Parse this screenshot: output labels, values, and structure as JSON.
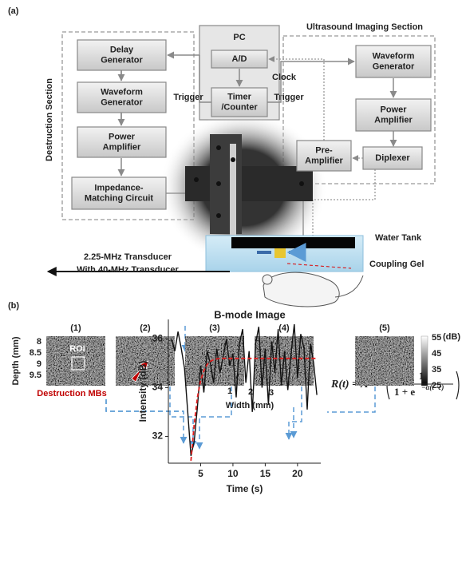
{
  "panel_a": {
    "label": "(a)",
    "destruction": {
      "title": "Destruction Section",
      "boxes": [
        [
          "Delay",
          "Generator"
        ],
        [
          "Waveform",
          "Generator"
        ],
        [
          "Power",
          "Amplifier"
        ],
        [
          "Impedance-",
          "Matching Circuit"
        ]
      ]
    },
    "pc": {
      "title": "PC",
      "ad": "A/D",
      "clock": "Clock",
      "timer": [
        "Timer",
        "/Counter"
      ]
    },
    "triggers": [
      "Trigger",
      "Trigger"
    ],
    "imaging": {
      "title": "Ultrasound Imaging Section",
      "boxes": [
        [
          "Waveform",
          "Generator"
        ],
        [
          "Power",
          "Amplifier"
        ],
        "Diplexer",
        [
          "Pre-",
          "Amplifier"
        ]
      ]
    },
    "water_tank": "Water Tank",
    "coupling_gel": "Coupling Gel",
    "transducer": [
      "2.25-MHz Transducer",
      "With 40-MHz Transducer"
    ]
  },
  "panel_b": {
    "label": "(b)",
    "title": "B-mode Image",
    "frames": [
      "(1)",
      "(2)",
      "(3)",
      "(4)",
      "(5)"
    ],
    "depth_label": "Depth (mm)",
    "depth_ticks": [
      "8",
      "8.5",
      "9",
      "9.5"
    ],
    "roi": "ROI",
    "destruction_label": "Destruction MBs",
    "width_label": "Width (mm)",
    "width_ticks": [
      "1",
      "2",
      "3"
    ],
    "colorbar": {
      "ticks": [
        "55",
        "45",
        "35",
        "25"
      ],
      "unit": "(dB)"
    },
    "equation": {
      "lhs": "R(t) = A",
      "numerator": "1",
      "denominator": "1 + e",
      "exponent": "−α(t−c)"
    }
  },
  "chart_data": {
    "type": "line",
    "x_label": "Time (s)",
    "y_label": "Intensity (dB)",
    "x": [
      0.5,
      1,
      1.5,
      2,
      2.5,
      3,
      3.5,
      4,
      4.5,
      5,
      5.5,
      6,
      6.5,
      7,
      7.5,
      8,
      8.5,
      9,
      9.5,
      10,
      10.5,
      11,
      11.5,
      12,
      12.5,
      13,
      13.5,
      14,
      14.5,
      15,
      15.5,
      16,
      16.5,
      17,
      17.5,
      18,
      18.5,
      19,
      19.5,
      20,
      20.5,
      21,
      21.5,
      22,
      22.5,
      23
    ],
    "series": [
      {
        "color": "#111111",
        "dashed": false,
        "values": [
          36.0,
          35.5,
          36.3,
          35.6,
          34.8,
          33.0,
          31.2,
          31.8,
          33.2,
          34.9,
          33.8,
          35.5,
          35.0,
          34.2,
          35.6,
          34.6,
          35.3,
          36.0,
          34.9,
          35.4,
          33.6,
          35.8,
          36.4,
          34.2,
          35.5,
          33.0,
          35.8,
          36.5,
          34.0,
          35.6,
          33.3,
          35.9,
          34.6,
          36.4,
          34.1,
          35.5,
          33.9,
          35.4,
          36.6,
          34.4,
          36.2,
          35.6,
          33.1,
          35.8,
          35.0,
          33.7
        ]
      },
      {
        "color": "#e02020",
        "dashed": true,
        "values": [
          null,
          null,
          null,
          null,
          null,
          null,
          31.0,
          32.5,
          33.6,
          34.3,
          34.7,
          34.95,
          35.08,
          35.15,
          35.18,
          35.2,
          35.2,
          35.2,
          35.2,
          35.2,
          35.2,
          35.2,
          35.2,
          35.2,
          35.2,
          35.2,
          35.2,
          35.2,
          35.2,
          35.2,
          35.2,
          35.2,
          35.2,
          35.2,
          35.2,
          35.2,
          35.2,
          35.2,
          35.2,
          35.2,
          35.2,
          35.2,
          35.2,
          35.2,
          35.2,
          35.2
        ]
      }
    ],
    "xlim": [
      0,
      23.6
    ],
    "ylim": [
      30.9,
      36.8
    ],
    "xticks": [
      5,
      10,
      15,
      20
    ],
    "yticks": [
      32,
      34,
      36
    ]
  }
}
